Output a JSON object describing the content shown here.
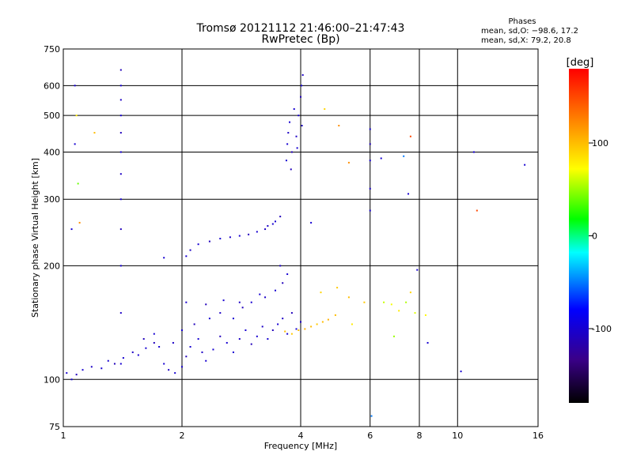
{
  "chart_data": {
    "type": "scatter",
    "title": "Tromsø 20121112 21:46:00–21:47:43",
    "subtitle": "RwPretec (Bp)",
    "xlabel": "Frequency [MHz]",
    "ylabel": "Stationary phase Virtual Height [km]",
    "x_scale": "log",
    "y_scale": "log",
    "xlim": [
      1,
      16
    ],
    "ylim": [
      75,
      750
    ],
    "x_ticks": [
      1,
      2,
      4,
      6,
      8,
      10,
      16
    ],
    "x_tick_labels": [
      "1",
      "2",
      "4",
      "6",
      "8",
      "10",
      "16"
    ],
    "y_ticks": [
      75,
      100,
      200,
      300,
      400,
      500,
      600,
      750
    ],
    "y_tick_labels": [
      "75",
      "100",
      "200",
      "300",
      "400",
      "500",
      "600",
      "750"
    ],
    "grid": true,
    "stats": {
      "heading": "Phases",
      "line1": "mean, sd,O: −98.6, 17.2",
      "line2": "mean, sd,X:  79.2, 20.8"
    },
    "colorbar": {
      "label": "[deg]",
      "range": [
        -180,
        180
      ],
      "ticks": [
        100,
        0,
        -100
      ],
      "tick_labels": [
        "100",
        "0",
        "-100"
      ],
      "colors": [
        "#000000",
        "#3a0088",
        "#0000ff",
        "#00ffff",
        "#00ff00",
        "#ffff00",
        "#ff8000",
        "#ff0000"
      ]
    },
    "series": [
      {
        "trace": "lower-trace",
        "points": [
          [
            1.02,
            104,
            -100
          ],
          [
            1.05,
            100,
            -100
          ],
          [
            1.08,
            103,
            -110
          ],
          [
            1.12,
            106,
            -100
          ],
          [
            1.18,
            108,
            -105
          ],
          [
            1.25,
            107,
            -100
          ],
          [
            1.3,
            112,
            -100
          ],
          [
            1.35,
            110,
            -110
          ],
          [
            1.42,
            114,
            -100
          ],
          [
            1.5,
            118,
            -105
          ],
          [
            1.55,
            116,
            -100
          ],
          [
            1.62,
            121,
            -100
          ],
          [
            1.7,
            125,
            -110
          ],
          [
            1.75,
            122,
            -100
          ],
          [
            1.8,
            110,
            -100
          ],
          [
            1.85,
            106,
            -105
          ],
          [
            1.92,
            104,
            -100
          ],
          [
            2.0,
            108,
            -100
          ],
          [
            2.05,
            115,
            -110
          ],
          [
            2.1,
            122,
            -100
          ],
          [
            2.2,
            128,
            -100
          ],
          [
            2.25,
            118,
            -105
          ],
          [
            2.3,
            112,
            -100
          ],
          [
            2.4,
            120,
            -100
          ],
          [
            2.5,
            130,
            -110
          ],
          [
            2.6,
            125,
            -100
          ],
          [
            2.7,
            118,
            -100
          ],
          [
            2.8,
            128,
            -105
          ],
          [
            2.9,
            135,
            -100
          ],
          [
            3.0,
            124,
            -110
          ],
          [
            3.1,
            130,
            -100
          ],
          [
            3.2,
            138,
            -105
          ],
          [
            3.3,
            128,
            -100
          ],
          [
            3.4,
            135,
            -110
          ],
          [
            3.5,
            140,
            -100
          ],
          [
            3.6,
            145,
            -105
          ],
          [
            3.7,
            132,
            -100
          ],
          [
            3.8,
            150,
            -110
          ],
          [
            3.9,
            136,
            -100
          ],
          [
            4.0,
            142,
            -105
          ],
          [
            1.6,
            128,
            -110
          ],
          [
            1.7,
            132,
            -100
          ],
          [
            1.9,
            125,
            -105
          ],
          [
            2.0,
            135,
            -100
          ],
          [
            2.15,
            140,
            -110
          ],
          [
            2.35,
            145,
            -100
          ],
          [
            2.5,
            150,
            -105
          ],
          [
            2.7,
            145,
            -100
          ],
          [
            2.85,
            155,
            -110
          ],
          [
            3.0,
            160,
            -100
          ],
          [
            3.25,
            165,
            -105
          ],
          [
            3.45,
            172,
            -100
          ],
          [
            3.6,
            180,
            -110
          ],
          [
            3.7,
            190,
            -100
          ],
          [
            3.55,
            200,
            -105
          ],
          [
            2.05,
            160,
            -100
          ],
          [
            2.3,
            158,
            -110
          ],
          [
            2.55,
            162,
            -100
          ],
          [
            2.8,
            160,
            -105
          ],
          [
            3.15,
            168,
            -100
          ]
        ]
      },
      {
        "trace": "x-mode-trace",
        "points": [
          [
            3.65,
            134,
            100
          ],
          [
            3.8,
            132,
            95
          ],
          [
            3.95,
            135,
            100
          ],
          [
            4.1,
            136,
            105
          ],
          [
            4.25,
            138,
            100
          ],
          [
            4.4,
            140,
            95
          ],
          [
            4.55,
            142,
            100
          ],
          [
            4.7,
            144,
            105
          ],
          [
            4.9,
            148,
            100
          ],
          [
            4.5,
            170,
            90
          ],
          [
            4.95,
            175,
            95
          ],
          [
            5.3,
            165,
            100
          ],
          [
            5.8,
            160,
            95
          ],
          [
            6.5,
            160,
            60
          ],
          [
            6.8,
            158,
            70
          ],
          [
            7.1,
            152,
            80
          ],
          [
            7.4,
            160,
            55
          ],
          [
            7.6,
            170,
            90
          ],
          [
            7.8,
            150,
            65
          ],
          [
            8.3,
            148,
            75
          ]
        ]
      },
      {
        "trace": "f-trace",
        "points": [
          [
            2.05,
            212,
            -100
          ],
          [
            2.1,
            220,
            -105
          ],
          [
            2.2,
            228,
            -100
          ],
          [
            2.35,
            232,
            -110
          ],
          [
            2.5,
            236,
            -100
          ],
          [
            2.65,
            238,
            -105
          ],
          [
            2.8,
            240,
            -100
          ],
          [
            2.95,
            242,
            -110
          ],
          [
            3.1,
            246,
            -100
          ],
          [
            3.25,
            250,
            -105
          ],
          [
            3.4,
            258,
            -100
          ],
          [
            3.55,
            270,
            -110
          ],
          [
            3.45,
            262,
            -100
          ],
          [
            3.3,
            255,
            -105
          ]
        ]
      },
      {
        "trace": "spread-f",
        "points": [
          [
            3.7,
            420,
            -100
          ],
          [
            3.72,
            450,
            -105
          ],
          [
            3.75,
            480,
            -100
          ],
          [
            3.8,
            400,
            -110
          ],
          [
            3.85,
            520,
            -100
          ],
          [
            3.9,
            440,
            -105
          ],
          [
            3.95,
            500,
            -100
          ],
          [
            4.0,
            560,
            -110
          ],
          [
            4.02,
            600,
            -100
          ],
          [
            4.05,
            640,
            -105
          ],
          [
            3.68,
            380,
            -100
          ],
          [
            3.78,
            360,
            -110
          ],
          [
            3.92,
            410,
            -100
          ],
          [
            4.03,
            470,
            -105
          ]
        ]
      },
      {
        "trace": "vertical-line-1.4MHz",
        "points": [
          [
            1.4,
            110,
            -100
          ],
          [
            1.4,
            150,
            -105
          ],
          [
            1.4,
            200,
            -100
          ],
          [
            1.4,
            250,
            -110
          ],
          [
            1.4,
            300,
            -100
          ],
          [
            1.4,
            350,
            -105
          ],
          [
            1.4,
            400,
            -100
          ],
          [
            1.4,
            450,
            -110
          ],
          [
            1.4,
            500,
            -100
          ],
          [
            1.4,
            550,
            -105
          ],
          [
            1.4,
            600,
            -100
          ],
          [
            1.4,
            660,
            -110
          ]
        ]
      },
      {
        "trace": "vertical-line-6MHz",
        "points": [
          [
            6.0,
            280,
            -100
          ],
          [
            6.0,
            320,
            -105
          ],
          [
            6.0,
            380,
            -100
          ],
          [
            6.0,
            420,
            -110
          ],
          [
            6.0,
            460,
            -100
          ]
        ]
      },
      {
        "trace": "scatter-other",
        "points": [
          [
            1.07,
            600,
            -100
          ],
          [
            1.07,
            420,
            -100
          ],
          [
            1.05,
            250,
            -100
          ],
          [
            1.1,
            260,
            120
          ],
          [
            1.09,
            330,
            40
          ],
          [
            1.08,
            500,
            80
          ],
          [
            1.2,
            450,
            100
          ],
          [
            1.8,
            210,
            -100
          ],
          [
            4.25,
            260,
            -100
          ],
          [
            4.6,
            520,
            90
          ],
          [
            5.0,
            470,
            120
          ],
          [
            5.3,
            375,
            120
          ],
          [
            6.05,
            80,
            -50
          ],
          [
            6.4,
            385,
            -100
          ],
          [
            7.3,
            390,
            -50
          ],
          [
            7.6,
            440,
            150
          ],
          [
            7.5,
            310,
            -100
          ],
          [
            10.2,
            105,
            -100
          ],
          [
            11.0,
            400,
            -100
          ],
          [
            11.2,
            280,
            150
          ],
          [
            14.8,
            370,
            -100
          ],
          [
            8.4,
            125,
            -100
          ],
          [
            5.4,
            140,
            80
          ],
          [
            6.9,
            130,
            50
          ],
          [
            7.9,
            195,
            -100
          ]
        ]
      }
    ]
  }
}
